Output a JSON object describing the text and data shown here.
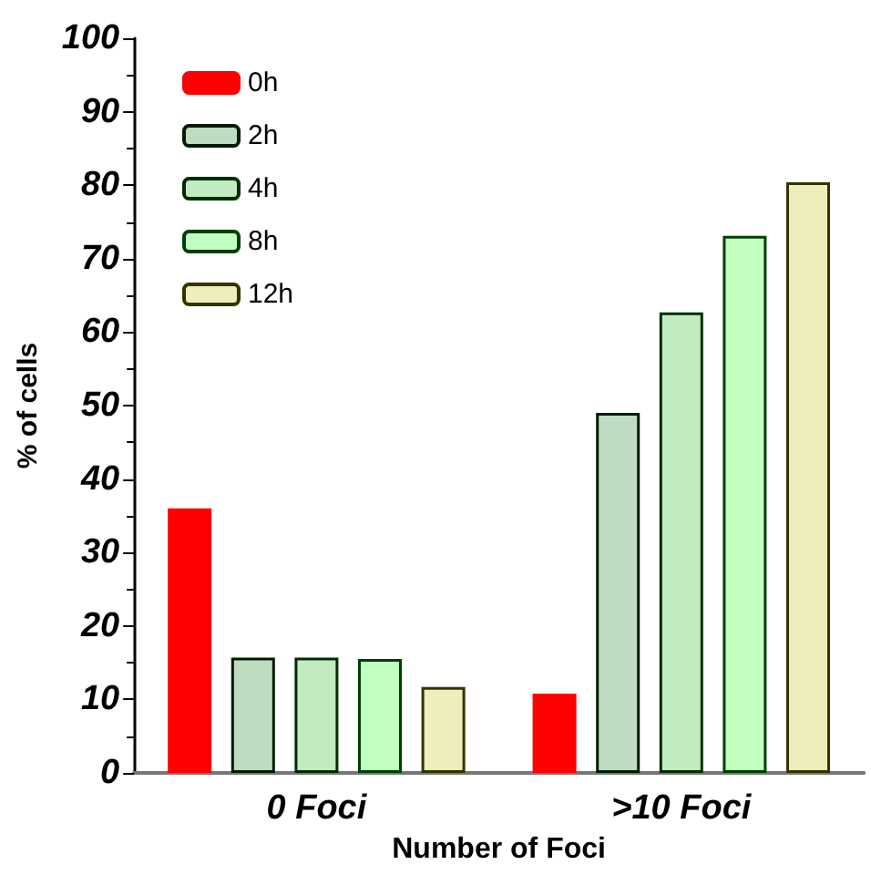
{
  "chart_data": {
    "type": "bar",
    "xlabel": "Number of Foci",
    "ylabel": "% of cells",
    "categories": [
      "0 Foci",
      ">10 Foci"
    ],
    "series": [
      {
        "name": "0h",
        "color": "#ff0000",
        "values": [
          36,
          10.8
        ]
      },
      {
        "name": "2h",
        "color": "#c0dcc0",
        "values": [
          15.7,
          49
        ]
      },
      {
        "name": "4h",
        "color": "#c0ecc0",
        "values": [
          15.7,
          62.7
        ]
      },
      {
        "name": "8h",
        "color": "#c0ffc0",
        "values": [
          15.5,
          73.1
        ]
      },
      {
        "name": "12h",
        "color": "#eeeebb",
        "values": [
          11.7,
          80.4
        ]
      }
    ],
    "ylim": [
      0,
      100
    ],
    "yticks": [
      0,
      10,
      20,
      30,
      40,
      50,
      60,
      70,
      80,
      90,
      100
    ],
    "grid": false,
    "legend": "top left"
  }
}
